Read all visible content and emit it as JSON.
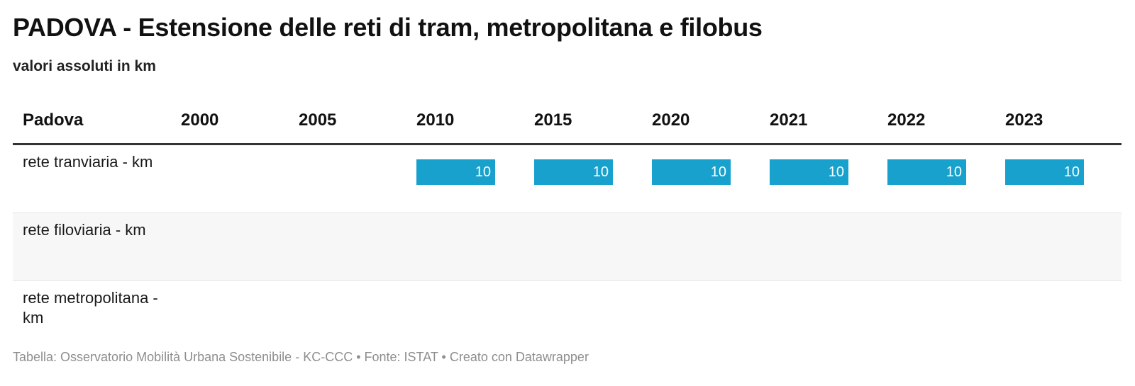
{
  "title": "PADOVA - Estensione delle reti di tram, metropolitana e filobus",
  "subtitle": "valori assoluti in km",
  "table": {
    "header": [
      "Padova",
      "2000",
      "2005",
      "2010",
      "2015",
      "2020",
      "2021",
      "2022",
      "2023"
    ],
    "rows": [
      {
        "label": "rete tranviaria - km",
        "values": [
          null,
          null,
          10,
          10,
          10,
          10,
          10,
          10
        ]
      },
      {
        "label": "rete filoviaria - km",
        "values": [
          null,
          null,
          null,
          null,
          null,
          null,
          null,
          null
        ]
      },
      {
        "label": "rete metropolitana - km",
        "values": [
          null,
          null,
          null,
          null,
          null,
          null,
          null,
          null
        ]
      }
    ]
  },
  "chart_data": {
    "type": "table",
    "title": "PADOVA - Estensione delle reti di tram, metropolitana e filobus",
    "subtitle": "valori assoluti in km",
    "columns": [
      "2000",
      "2005",
      "2010",
      "2015",
      "2020",
      "2021",
      "2022",
      "2023"
    ],
    "series": [
      {
        "name": "rete tranviaria - km",
        "values": [
          null,
          null,
          10,
          10,
          10,
          10,
          10,
          10
        ]
      },
      {
        "name": "rete filoviaria - km",
        "values": [
          null,
          null,
          null,
          null,
          null,
          null,
          null,
          null
        ]
      },
      {
        "name": "rete metropolitana - km",
        "values": [
          null,
          null,
          null,
          null,
          null,
          null,
          null,
          null
        ]
      }
    ],
    "bar_color": "#18a1cd",
    "bar_max": 10
  },
  "footer": "Tabella: Osservatorio Mobilità Urbana Sostenibile - KC-CCC • Fonte: ISTAT • Creato con Datawrapper"
}
